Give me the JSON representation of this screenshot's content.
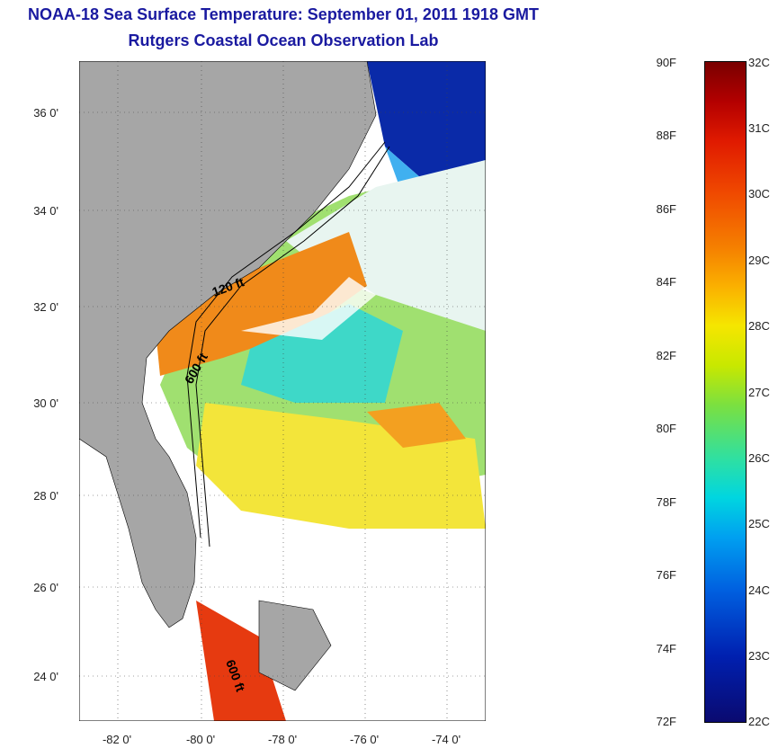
{
  "header": {
    "title": "NOAA-18 Sea Surface Temperature:  September 01, 2011 1918 GMT",
    "subtitle": "Rutgers Coastal Ocean Observation Lab"
  },
  "map": {
    "lat_labels": [
      "36 0'",
      "34 0'",
      "32 0'",
      "30 0'",
      "28 0'",
      "26 0'",
      "24 0'"
    ],
    "lon_labels": [
      "-82 0'",
      "-80 0'",
      "-78 0'",
      "-76 0'",
      "-74 0'"
    ],
    "contour_labels": [
      "120 ft",
      "600 ft",
      "600 ft"
    ]
  },
  "colorbar": {
    "fahrenheit": [
      "90F",
      "88F",
      "86F",
      "84F",
      "82F",
      "80F",
      "78F",
      "76F",
      "74F",
      "72F"
    ],
    "celsius": [
      "32C",
      "31C",
      "30C",
      "29C",
      "28C",
      "27C",
      "26C",
      "25C",
      "24C",
      "23C",
      "22C"
    ],
    "colors": [
      "#7a0000",
      "#e01a00",
      "#f57f00",
      "#f5e600",
      "#7be040",
      "#00d6e0",
      "#0060e0",
      "#0a0a70"
    ]
  },
  "colors": {
    "title": "#1a1aa0",
    "land": "#a6a6a6"
  }
}
